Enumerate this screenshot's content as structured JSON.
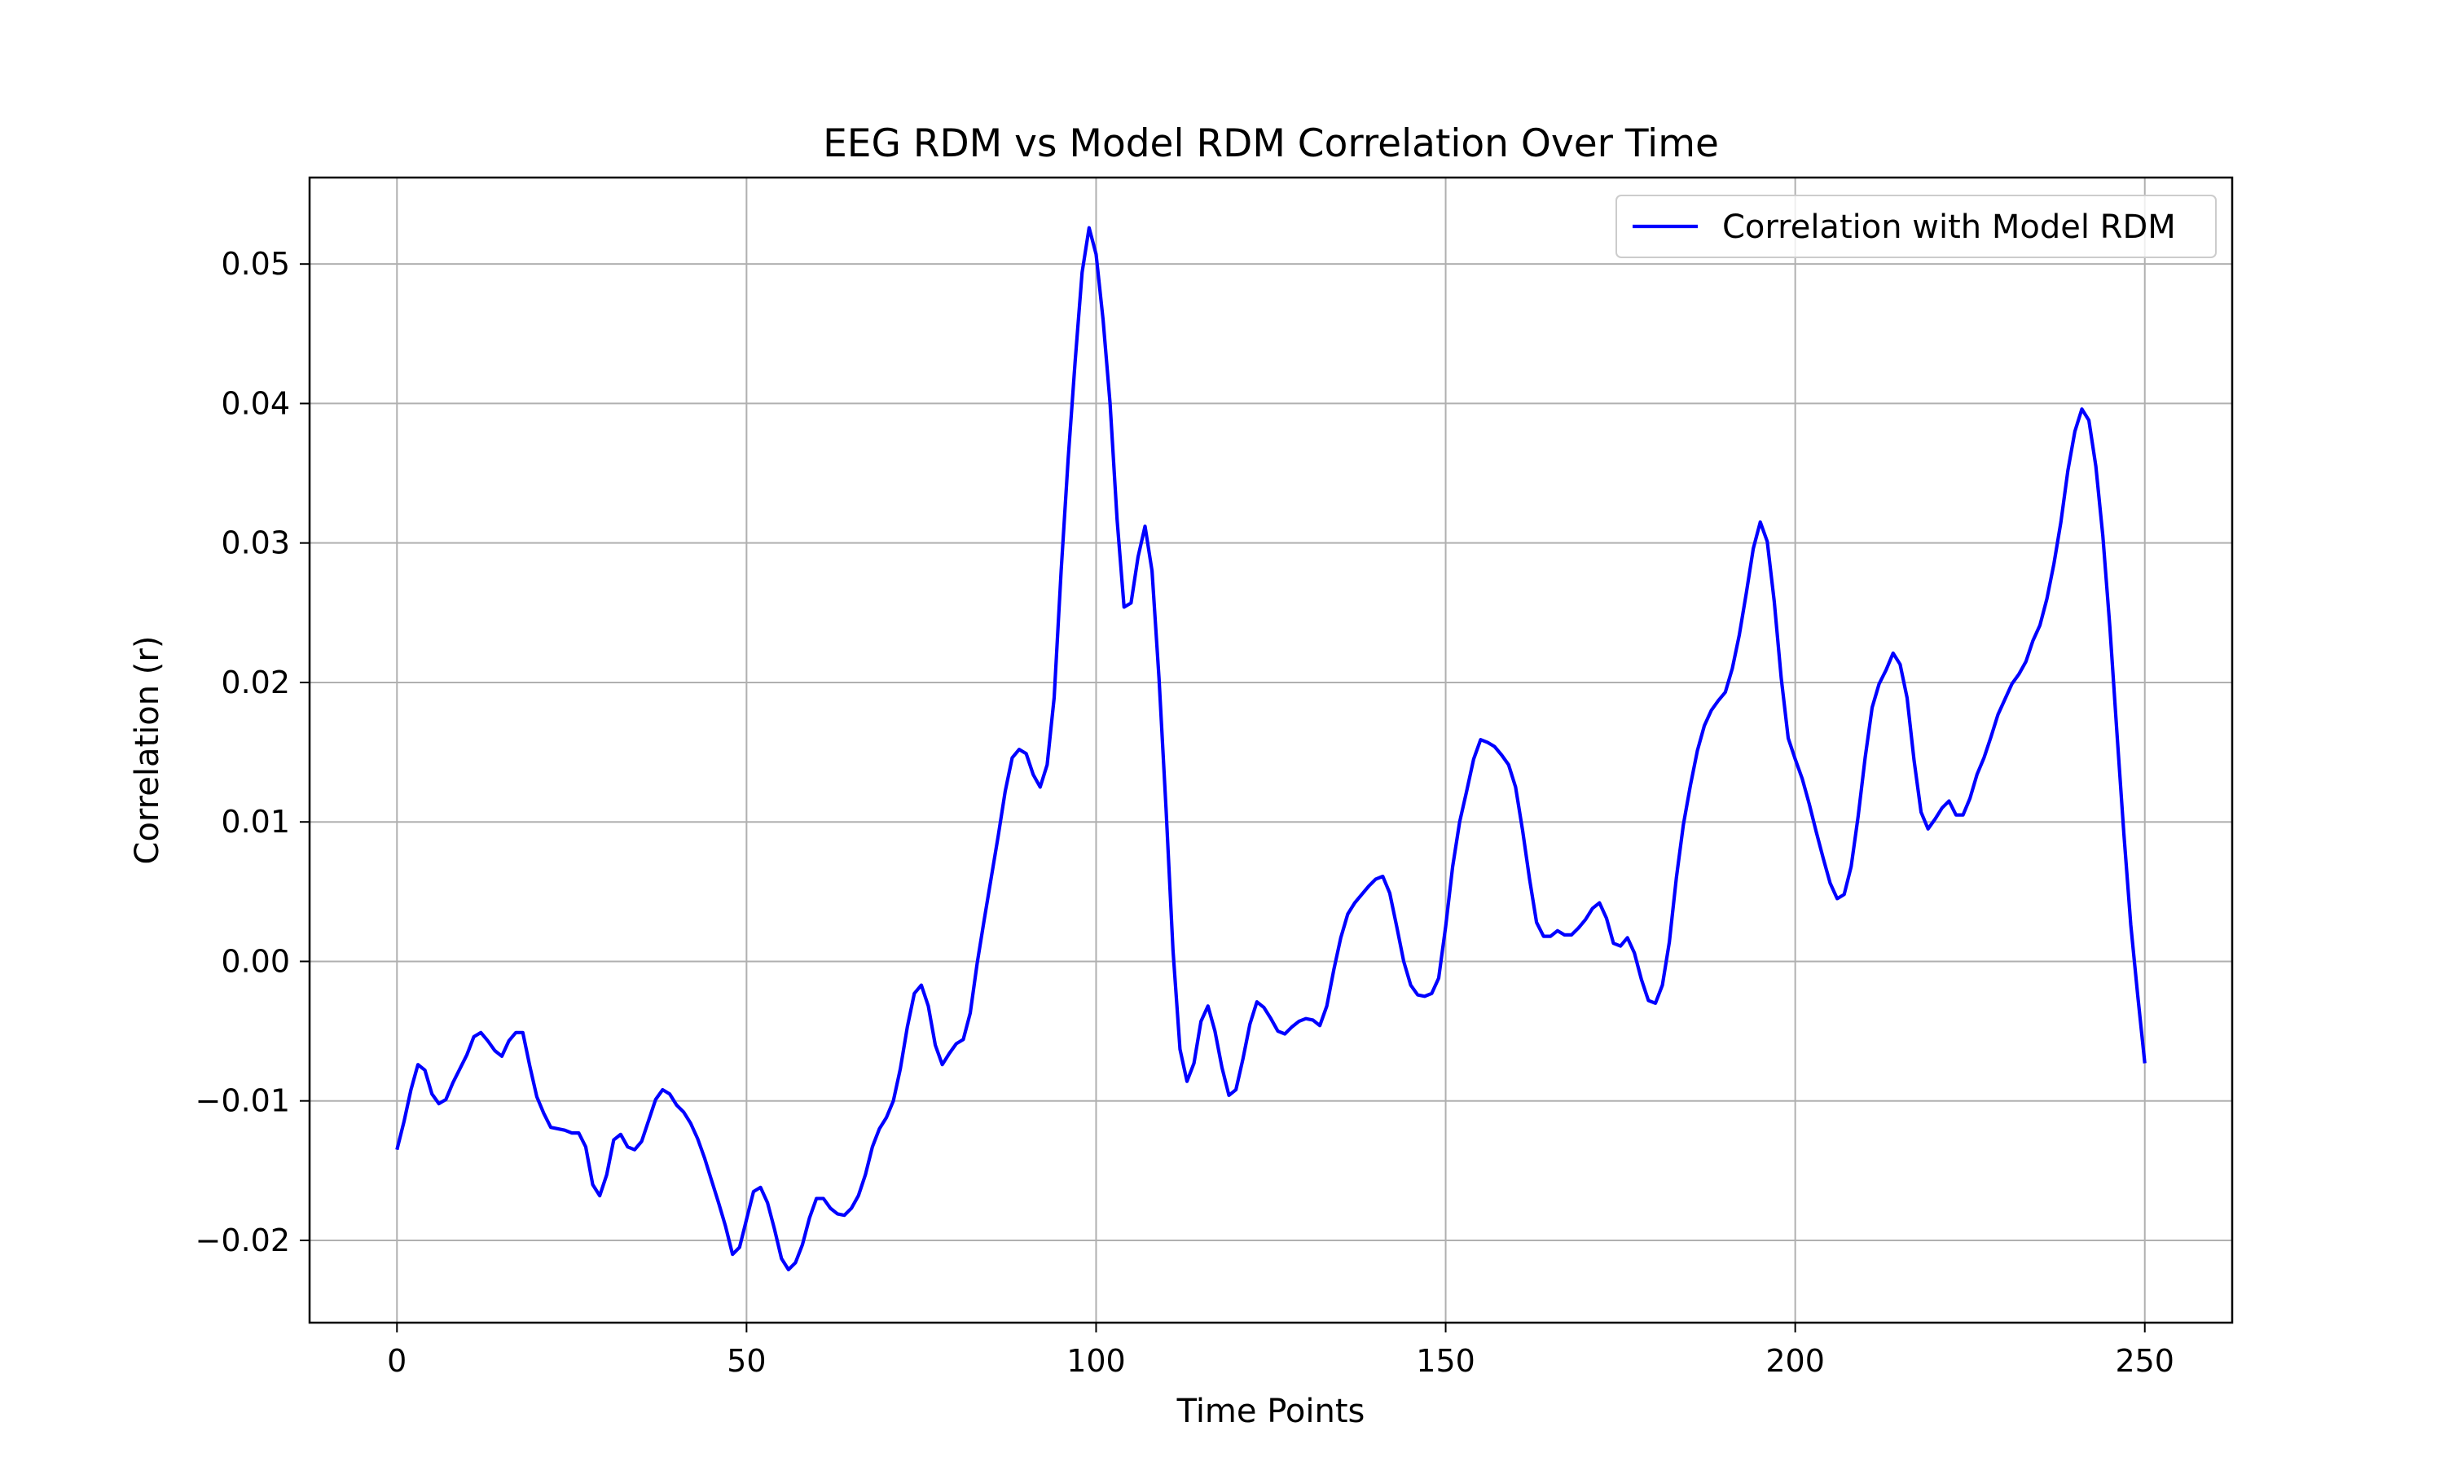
{
  "chart_data": {
    "type": "line",
    "title": "EEG RDM vs Model RDM Correlation Over Time",
    "xlabel": "Time Points",
    "ylabel": "Correlation (r)",
    "xlim": [
      -12.5,
      262.5
    ],
    "ylim": [
      -0.0259,
      0.0562
    ],
    "xticks": [
      0,
      50,
      100,
      150,
      200,
      250
    ],
    "xtick_labels": [
      "0",
      "50",
      "100",
      "150",
      "200",
      "250"
    ],
    "yticks": [
      -0.02,
      -0.01,
      0.0,
      0.01,
      0.02,
      0.03,
      0.04,
      0.05
    ],
    "ytick_labels": [
      "−0.02",
      "−0.01",
      "0.00",
      "0.01",
      "0.02",
      "0.03",
      "0.04",
      "0.05"
    ],
    "grid": true,
    "legend_position": "top-right",
    "series": [
      {
        "name": "Correlation with Model RDM",
        "color": "#0000ff",
        "x": [
          0,
          1,
          2,
          3,
          4,
          5,
          6,
          7,
          8,
          9,
          10,
          11,
          12,
          13,
          14,
          15,
          16,
          17,
          18,
          19,
          20,
          21,
          22,
          23,
          24,
          25,
          26,
          27,
          28,
          29,
          30,
          31,
          32,
          33,
          34,
          35,
          36,
          37,
          38,
          39,
          40,
          41,
          42,
          43,
          44,
          45,
          46,
          47,
          48,
          49,
          50,
          51,
          52,
          53,
          54,
          55,
          56,
          57,
          58,
          59,
          60,
          61,
          62,
          63,
          64,
          65,
          66,
          67,
          68,
          69,
          70,
          71,
          72,
          73,
          74,
          75,
          76,
          77,
          78,
          79,
          80,
          81,
          82,
          83,
          84,
          85,
          86,
          87,
          88,
          89,
          90,
          91,
          92,
          93,
          94,
          95,
          96,
          97,
          98,
          99,
          100,
          101,
          102,
          103,
          104,
          105,
          106,
          107,
          108,
          109,
          110,
          111,
          112,
          113,
          114,
          115,
          116,
          117,
          118,
          119,
          120,
          121,
          122,
          123,
          124,
          125,
          126,
          127,
          128,
          129,
          130,
          131,
          132,
          133,
          134,
          135,
          136,
          137,
          138,
          139,
          140,
          141,
          142,
          143,
          144,
          145,
          146,
          147,
          148,
          149,
          150,
          151,
          152,
          153,
          154,
          155,
          156,
          157,
          158,
          159,
          160,
          161,
          162,
          163,
          164,
          165,
          166,
          167,
          168,
          169,
          170,
          171,
          172,
          173,
          174,
          175,
          176,
          177,
          178,
          179,
          180,
          181,
          182,
          183,
          184,
          185,
          186,
          187,
          188,
          189,
          190,
          191,
          192,
          193,
          194,
          195,
          196,
          197,
          198,
          199,
          200,
          201,
          202,
          203,
          204,
          205,
          206,
          207,
          208,
          209,
          210,
          211,
          212,
          213,
          214,
          215,
          216,
          217,
          218,
          219,
          220,
          221,
          222,
          223,
          224,
          225,
          226,
          227,
          228,
          229,
          230,
          231,
          232,
          233,
          234,
          235,
          236,
          237,
          238,
          239,
          240,
          241,
          242,
          243,
          244,
          245,
          246,
          247,
          248,
          249,
          250
        ],
        "y": [
          -0.0135,
          -0.0115,
          -0.0092,
          -0.0074,
          -0.0078,
          -0.0095,
          -0.0102,
          -0.0099,
          -0.0087,
          -0.0077,
          -0.0067,
          -0.0054,
          -0.0051,
          -0.0057,
          -0.0064,
          -0.0068,
          -0.0057,
          -0.0051,
          -0.0051,
          -0.0075,
          -0.0097,
          -0.0109,
          -0.0119,
          -0.012,
          -0.0121,
          -0.0123,
          -0.0123,
          -0.0133,
          -0.016,
          -0.0168,
          -0.0153,
          -0.0128,
          -0.0124,
          -0.0133,
          -0.0135,
          -0.0129,
          -0.0114,
          -0.0099,
          -0.0092,
          -0.0095,
          -0.0103,
          -0.0108,
          -0.0116,
          -0.0127,
          -0.0141,
          -0.0157,
          -0.0173,
          -0.019,
          -0.021,
          -0.0205,
          -0.0185,
          -0.0165,
          -0.0162,
          -0.0173,
          -0.0192,
          -0.0213,
          -0.0221,
          -0.0216,
          -0.0203,
          -0.0184,
          -0.017,
          -0.017,
          -0.0177,
          -0.0181,
          -0.0182,
          -0.0177,
          -0.0168,
          -0.0153,
          -0.0133,
          -0.012,
          -0.0112,
          -0.01,
          -0.0077,
          -0.0047,
          -0.0023,
          -0.0017,
          -0.0032,
          -0.006,
          -0.0074,
          -0.0066,
          -0.0059,
          -0.0056,
          -0.0037,
          -0.0001,
          0.003,
          0.006,
          0.009,
          0.0122,
          0.0146,
          0.0152,
          0.0149,
          0.0134,
          0.0125,
          0.0141,
          0.0189,
          0.028,
          0.036,
          0.043,
          0.0494,
          0.0526,
          0.0507,
          0.046,
          0.04,
          0.0317,
          0.0254,
          0.0257,
          0.029,
          0.0312,
          0.028,
          0.0203,
          0.011,
          0.0008,
          -0.0063,
          -0.0086,
          -0.0073,
          -0.0043,
          -0.0032,
          -0.005,
          -0.0076,
          -0.0096,
          -0.0092,
          -0.007,
          -0.0045,
          -0.0029,
          -0.0033,
          -0.0041,
          -0.005,
          -0.0052,
          -0.0047,
          -0.0043,
          -0.0041,
          -0.0042,
          -0.0046,
          -0.0032,
          -0.0006,
          0.0017,
          0.0034,
          0.0042,
          0.0048,
          0.0054,
          0.0059,
          0.0061,
          0.0049,
          0.0025,
          0.0,
          -0.0017,
          -0.0024,
          -0.0025,
          -0.0023,
          -0.0012,
          0.0025,
          0.0068,
          0.01,
          0.0122,
          0.0145,
          0.0159,
          0.0157,
          0.0154,
          0.0148,
          0.0141,
          0.0125,
          0.0094,
          0.0059,
          0.0028,
          0.0018,
          0.0018,
          0.0022,
          0.0019,
          0.0019,
          0.0024,
          0.003,
          0.0038,
          0.0042,
          0.0031,
          0.0013,
          0.0011,
          0.0017,
          0.0006,
          -0.0013,
          -0.0028,
          -0.003,
          -0.0017,
          0.0014,
          0.006,
          0.0098,
          0.0126,
          0.0151,
          0.0169,
          0.018,
          0.0187,
          0.0193,
          0.021,
          0.0234,
          0.0264,
          0.0296,
          0.0315,
          0.0301,
          0.0258,
          0.0203,
          0.016,
          0.0145,
          0.0131,
          0.0113,
          0.0093,
          0.0074,
          0.0056,
          0.0045,
          0.0048,
          0.0068,
          0.0104,
          0.0146,
          0.0182,
          0.0199,
          0.0209,
          0.0221,
          0.0213,
          0.0189,
          0.0144,
          0.0107,
          0.0095,
          0.0102,
          0.011,
          0.0115,
          0.0105,
          0.0105,
          0.0117,
          0.0134,
          0.0146,
          0.0161,
          0.0177,
          0.0188,
          0.0199,
          0.0206,
          0.0215,
          0.023,
          0.0241,
          0.026,
          0.0285,
          0.0315,
          0.0352,
          0.038,
          0.0396,
          0.0388,
          0.0355,
          0.0305,
          0.024,
          0.0165,
          0.0092,
          0.0026,
          -0.0025,
          -0.0073
        ]
      }
    ]
  }
}
